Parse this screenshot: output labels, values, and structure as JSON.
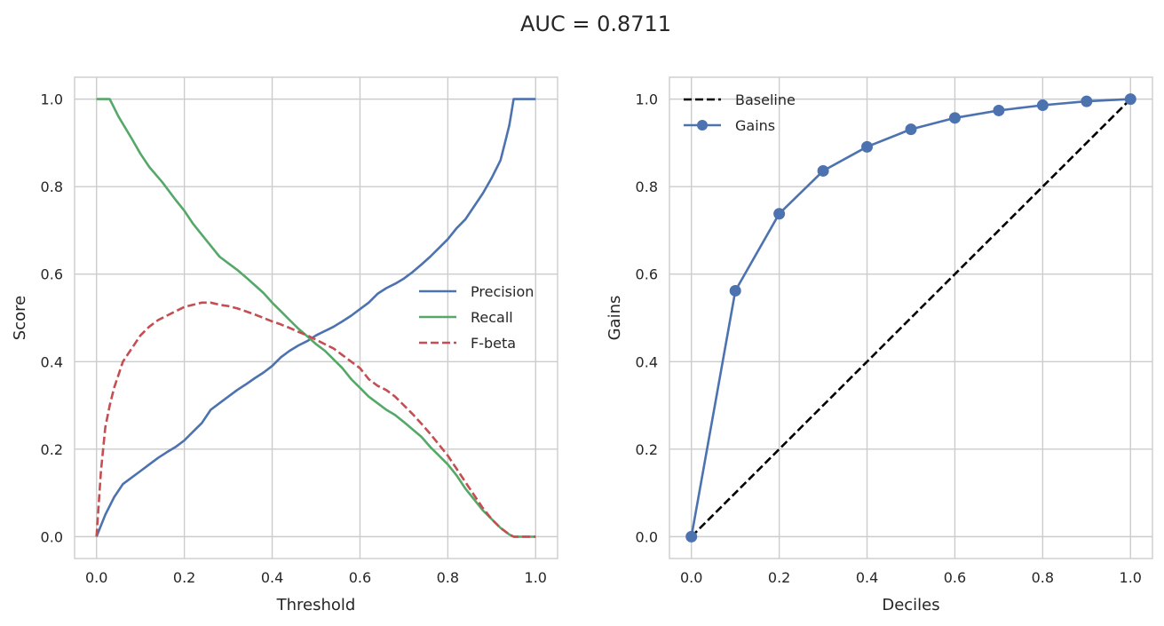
{
  "figure": {
    "title": "AUC = 0.8711"
  },
  "chart_data": [
    {
      "type": "line",
      "xlabel": "Threshold",
      "ylabel": "Score",
      "xlim": [
        -0.05,
        1.05
      ],
      "ylim": [
        -0.05,
        1.05
      ],
      "xticks": [
        "0.0",
        "0.2",
        "0.4",
        "0.6",
        "0.8",
        "1.0"
      ],
      "yticks": [
        "0.0",
        "0.2",
        "0.4",
        "0.6",
        "0.8",
        "1.0"
      ],
      "grid": true,
      "legend_position": "center-right",
      "series": [
        {
          "name": "Precision",
          "color": "#4c72b0",
          "style": "solid",
          "x": [
            0.0,
            0.02,
            0.04,
            0.06,
            0.08,
            0.1,
            0.12,
            0.14,
            0.16,
            0.18,
            0.2,
            0.22,
            0.24,
            0.26,
            0.28,
            0.3,
            0.32,
            0.34,
            0.36,
            0.38,
            0.4,
            0.42,
            0.44,
            0.46,
            0.48,
            0.5,
            0.52,
            0.54,
            0.56,
            0.58,
            0.6,
            0.62,
            0.64,
            0.66,
            0.68,
            0.7,
            0.72,
            0.74,
            0.76,
            0.78,
            0.8,
            0.82,
            0.84,
            0.86,
            0.88,
            0.9,
            0.92,
            0.93,
            0.94,
            0.945,
            0.95,
            1.0
          ],
          "y": [
            0.0,
            0.05,
            0.09,
            0.12,
            0.135,
            0.15,
            0.165,
            0.18,
            0.193,
            0.205,
            0.22,
            0.24,
            0.26,
            0.29,
            0.305,
            0.32,
            0.335,
            0.348,
            0.362,
            0.375,
            0.39,
            0.41,
            0.425,
            0.437,
            0.447,
            0.46,
            0.47,
            0.48,
            0.492,
            0.505,
            0.52,
            0.535,
            0.555,
            0.568,
            0.578,
            0.59,
            0.605,
            0.622,
            0.64,
            0.66,
            0.68,
            0.705,
            0.725,
            0.755,
            0.785,
            0.82,
            0.86,
            0.9,
            0.94,
            0.97,
            1.0,
            1.0
          ]
        },
        {
          "name": "Recall",
          "color": "#55a868",
          "style": "solid",
          "x": [
            0.0,
            0.02,
            0.03,
            0.05,
            0.08,
            0.1,
            0.12,
            0.15,
            0.18,
            0.2,
            0.22,
            0.24,
            0.26,
            0.28,
            0.3,
            0.32,
            0.34,
            0.36,
            0.38,
            0.4,
            0.42,
            0.44,
            0.46,
            0.48,
            0.5,
            0.52,
            0.54,
            0.56,
            0.58,
            0.6,
            0.62,
            0.64,
            0.66,
            0.68,
            0.7,
            0.72,
            0.74,
            0.76,
            0.78,
            0.8,
            0.82,
            0.84,
            0.86,
            0.88,
            0.9,
            0.92,
            0.94,
            0.95,
            1.0
          ],
          "y": [
            1.0,
            1.0,
            1.0,
            0.96,
            0.91,
            0.875,
            0.845,
            0.81,
            0.77,
            0.745,
            0.715,
            0.69,
            0.665,
            0.64,
            0.625,
            0.61,
            0.593,
            0.575,
            0.557,
            0.535,
            0.515,
            0.495,
            0.475,
            0.458,
            0.44,
            0.425,
            0.405,
            0.385,
            0.36,
            0.34,
            0.32,
            0.305,
            0.29,
            0.278,
            0.262,
            0.245,
            0.228,
            0.205,
            0.185,
            0.165,
            0.14,
            0.11,
            0.085,
            0.06,
            0.04,
            0.02,
            0.005,
            0.0,
            0.0
          ]
        },
        {
          "name": "F-beta",
          "color": "#c44e52",
          "style": "dashed",
          "x": [
            0.0,
            0.01,
            0.02,
            0.03,
            0.04,
            0.05,
            0.06,
            0.08,
            0.1,
            0.12,
            0.14,
            0.16,
            0.18,
            0.2,
            0.22,
            0.24,
            0.26,
            0.28,
            0.3,
            0.32,
            0.34,
            0.36,
            0.38,
            0.4,
            0.42,
            0.44,
            0.46,
            0.48,
            0.5,
            0.52,
            0.54,
            0.56,
            0.58,
            0.6,
            0.62,
            0.64,
            0.66,
            0.68,
            0.7,
            0.72,
            0.74,
            0.76,
            0.78,
            0.8,
            0.82,
            0.84,
            0.86,
            0.88,
            0.9,
            0.92,
            0.94,
            0.95,
            1.0
          ],
          "y": [
            0.0,
            0.15,
            0.25,
            0.3,
            0.34,
            0.37,
            0.4,
            0.43,
            0.46,
            0.48,
            0.495,
            0.505,
            0.515,
            0.525,
            0.53,
            0.535,
            0.535,
            0.53,
            0.527,
            0.522,
            0.515,
            0.508,
            0.5,
            0.492,
            0.485,
            0.477,
            0.468,
            0.46,
            0.45,
            0.44,
            0.43,
            0.415,
            0.4,
            0.385,
            0.36,
            0.345,
            0.335,
            0.32,
            0.3,
            0.28,
            0.258,
            0.235,
            0.21,
            0.185,
            0.155,
            0.125,
            0.095,
            0.065,
            0.04,
            0.02,
            0.005,
            0.0,
            0.0
          ]
        }
      ]
    },
    {
      "type": "line",
      "xlabel": "Deciles",
      "ylabel": "Gains",
      "xlim": [
        -0.05,
        1.05
      ],
      "ylim": [
        -0.05,
        1.05
      ],
      "xticks": [
        "0.0",
        "0.2",
        "0.4",
        "0.6",
        "0.8",
        "1.0"
      ],
      "yticks": [
        "0.0",
        "0.2",
        "0.4",
        "0.6",
        "0.8",
        "1.0"
      ],
      "grid": true,
      "legend_position": "upper-left",
      "series": [
        {
          "name": "Baseline",
          "color": "#000000",
          "style": "dashed",
          "x": [
            0.0,
            1.0
          ],
          "y": [
            0.0,
            1.0
          ]
        },
        {
          "name": "Gains",
          "color": "#4c72b0",
          "style": "solid",
          "marker": "circle",
          "x": [
            0.0,
            0.1,
            0.2,
            0.3,
            0.4,
            0.5,
            0.6,
            0.7,
            0.8,
            0.9,
            1.0
          ],
          "y": [
            0.0,
            0.562,
            0.738,
            0.836,
            0.891,
            0.931,
            0.957,
            0.974,
            0.986,
            0.995,
            1.0
          ]
        }
      ]
    }
  ]
}
